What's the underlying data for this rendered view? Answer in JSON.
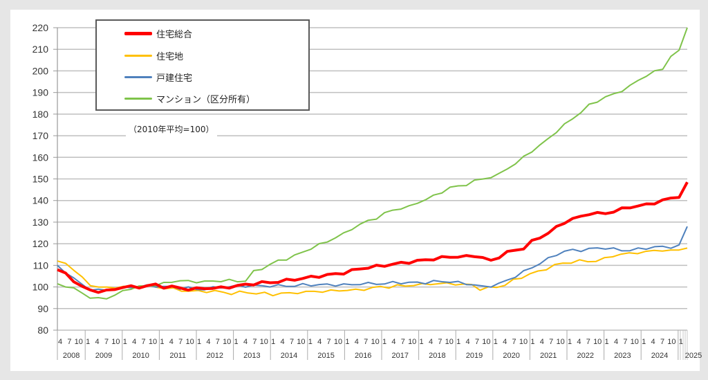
{
  "chart_data": {
    "type": "line",
    "title": "",
    "note": "（2010年平均=100）",
    "xlabel": "",
    "ylabel": "",
    "ylim": [
      80,
      220
    ],
    "yticks": [
      80,
      90,
      100,
      110,
      120,
      130,
      140,
      150,
      160,
      170,
      180,
      190,
      200,
      210,
      220
    ],
    "grid": true,
    "legend_position": "top-left",
    "x_start": "2008-04",
    "x_step": "quarterly",
    "x_month_ticks": [
      "4",
      "7",
      "10",
      "1"
    ],
    "x_years": [
      "2008",
      "2009",
      "2010",
      "2011",
      "2012",
      "2013",
      "2014",
      "2015",
      "2016",
      "2017",
      "2018",
      "2019",
      "2020",
      "2021",
      "2022",
      "2023",
      "2024",
      "2025"
    ],
    "series": [
      {
        "name": "住宅総合",
        "color": "#ff0000",
        "width": 4,
        "values": [
          108,
          106,
          103,
          100,
          98.5,
          98,
          98,
          99,
          100,
          100,
          100,
          100.5,
          101,
          100,
          100,
          99.5,
          99,
          99,
          99.5,
          99.5,
          99.5,
          100,
          100.5,
          101,
          101.5,
          102,
          102,
          102.5,
          103,
          103.5,
          104,
          104.5,
          105,
          105.5,
          106,
          106.5,
          107.5,
          108.5,
          109,
          109.5,
          110,
          110.5,
          111,
          111.5,
          112,
          112.5,
          113,
          113.5,
          114,
          114,
          114,
          114.5,
          113.5,
          112,
          114,
          116,
          117,
          118,
          121,
          123,
          125,
          127.5,
          130,
          131.5,
          132.5,
          134,
          134,
          134,
          135,
          136,
          137,
          137.5,
          138,
          139,
          140,
          141,
          142,
          148.5
        ]
      },
      {
        "name": "住宅地",
        "color": "#ffc000",
        "width": 2,
        "values": [
          112,
          111,
          108,
          104,
          101,
          100,
          99.5,
          100,
          100,
          100,
          100,
          100.5,
          100,
          99.5,
          99,
          98.5,
          98,
          98,
          98,
          98,
          97.5,
          97,
          97.5,
          97.5,
          97,
          97,
          96.5,
          97,
          97,
          97.5,
          97.5,
          98,
          98,
          98,
          98.5,
          98.5,
          98.5,
          99,
          99.5,
          100,
          100,
          100.5,
          100.5,
          101,
          101,
          101.5,
          101.5,
          101.5,
          101.5,
          101,
          101,
          99,
          99.5,
          100,
          101,
          103,
          104.5,
          106,
          107,
          108.5,
          110,
          111,
          111.5,
          112,
          112,
          112,
          113,
          114.5,
          115,
          115.5,
          116,
          116,
          117,
          117,
          116.5,
          117.5,
          118
        ]
      },
      {
        "name": "戸建住宅",
        "color": "#4f81bd",
        "width": 2,
        "values": [
          110,
          107,
          104,
          101,
          99,
          98.5,
          98.5,
          99,
          99.5,
          100,
          100,
          100.5,
          100.5,
          100,
          100,
          99.5,
          99.5,
          99,
          99,
          99.5,
          100,
          100,
          100.5,
          100.5,
          100.5,
          100.5,
          100.5,
          100.5,
          100.5,
          100.5,
          101,
          101,
          101,
          101,
          101,
          101,
          101,
          101.5,
          101.5,
          101.5,
          101.5,
          102,
          102,
          102,
          102,
          102,
          102.5,
          102.5,
          102.5,
          102,
          101.5,
          101,
          100,
          100.5,
          101.5,
          103,
          105,
          107,
          109,
          111,
          113,
          115,
          116.5,
          117,
          117,
          117.5,
          118,
          118,
          117.5,
          117,
          117,
          117.5,
          118,
          118.5,
          118.5,
          118.5,
          119,
          128
        ]
      },
      {
        "name": "マンション（区分所有）",
        "color": "#7fc34a",
        "width": 2,
        "values": [
          101.5,
          100.5,
          99,
          97.5,
          95,
          94.5,
          95,
          96,
          98,
          99.5,
          100,
          100.5,
          101,
          101.5,
          102.5,
          103,
          102.5,
          102.5,
          102.5,
          102.5,
          103,
          103,
          102.5,
          103,
          107,
          108.5,
          110.5,
          112,
          113,
          114.5,
          116,
          118,
          119.5,
          121,
          123,
          124.5,
          127,
          129,
          130.5,
          132,
          134,
          135.5,
          136.5,
          137,
          139,
          140.5,
          142,
          144,
          146,
          146.5,
          147.5,
          149,
          150,
          151,
          152,
          155,
          157,
          160,
          163,
          165.5,
          168.5,
          172,
          175,
          178,
          181,
          184,
          186,
          188,
          189,
          191,
          193,
          195.5,
          198,
          199.5,
          201,
          207,
          209,
          220
        ]
      }
    ]
  },
  "legend": {
    "items": [
      {
        "label": "住宅総合",
        "color": "#ff0000"
      },
      {
        "label": "住宅地",
        "color": "#ffc000"
      },
      {
        "label": "戸建住宅",
        "color": "#4f81bd"
      },
      {
        "label": "マンション（区分所有）",
        "color": "#7fc34a"
      }
    ]
  },
  "note_text": "（2010年平均=100）"
}
